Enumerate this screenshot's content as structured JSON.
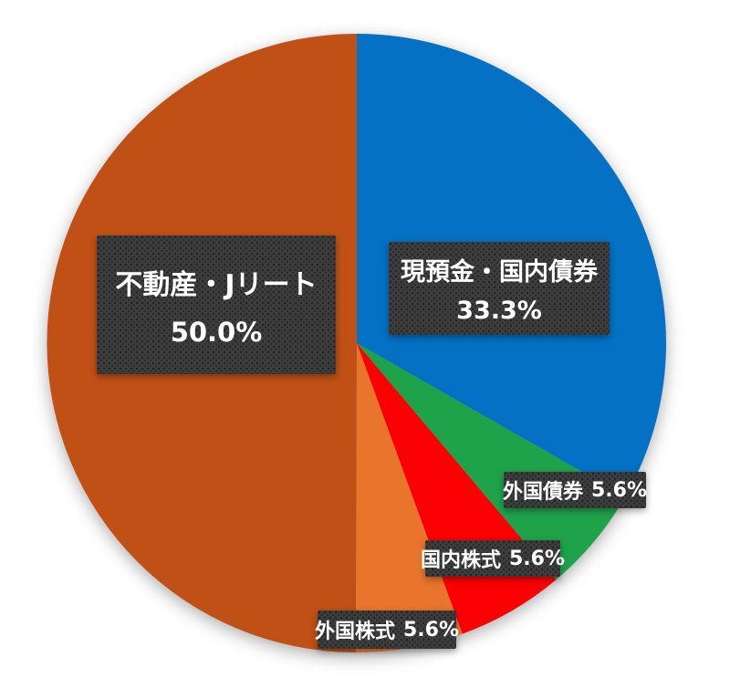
{
  "chart_data": {
    "type": "pie",
    "title": "",
    "legend": "none",
    "direction": "clockwise",
    "start_position": "top",
    "slices": [
      {
        "id": "cash-domestic-bonds",
        "label": "現預金・国内債券",
        "value": 33.3,
        "pct_label": "33.3%",
        "color": "#0471C4"
      },
      {
        "id": "foreign-bonds",
        "label": "外国債券",
        "value": 5.6,
        "pct_label": "5.6%",
        "color": "#1EA24A"
      },
      {
        "id": "domestic-stocks",
        "label": "国内株式",
        "value": 5.6,
        "pct_label": "5.6%",
        "color": "#FB0104"
      },
      {
        "id": "foreign-stocks",
        "label": "外国株式",
        "value": 5.6,
        "pct_label": "5.6%",
        "color": "#E8752B"
      },
      {
        "id": "real-estate-jreit",
        "label": "不動産・Jリート",
        "value": 50.0,
        "pct_label": "50.0%",
        "color": "#C05016"
      }
    ],
    "callout_box_color": "#3e3e3e",
    "callout_text_color": "#ffffff"
  }
}
